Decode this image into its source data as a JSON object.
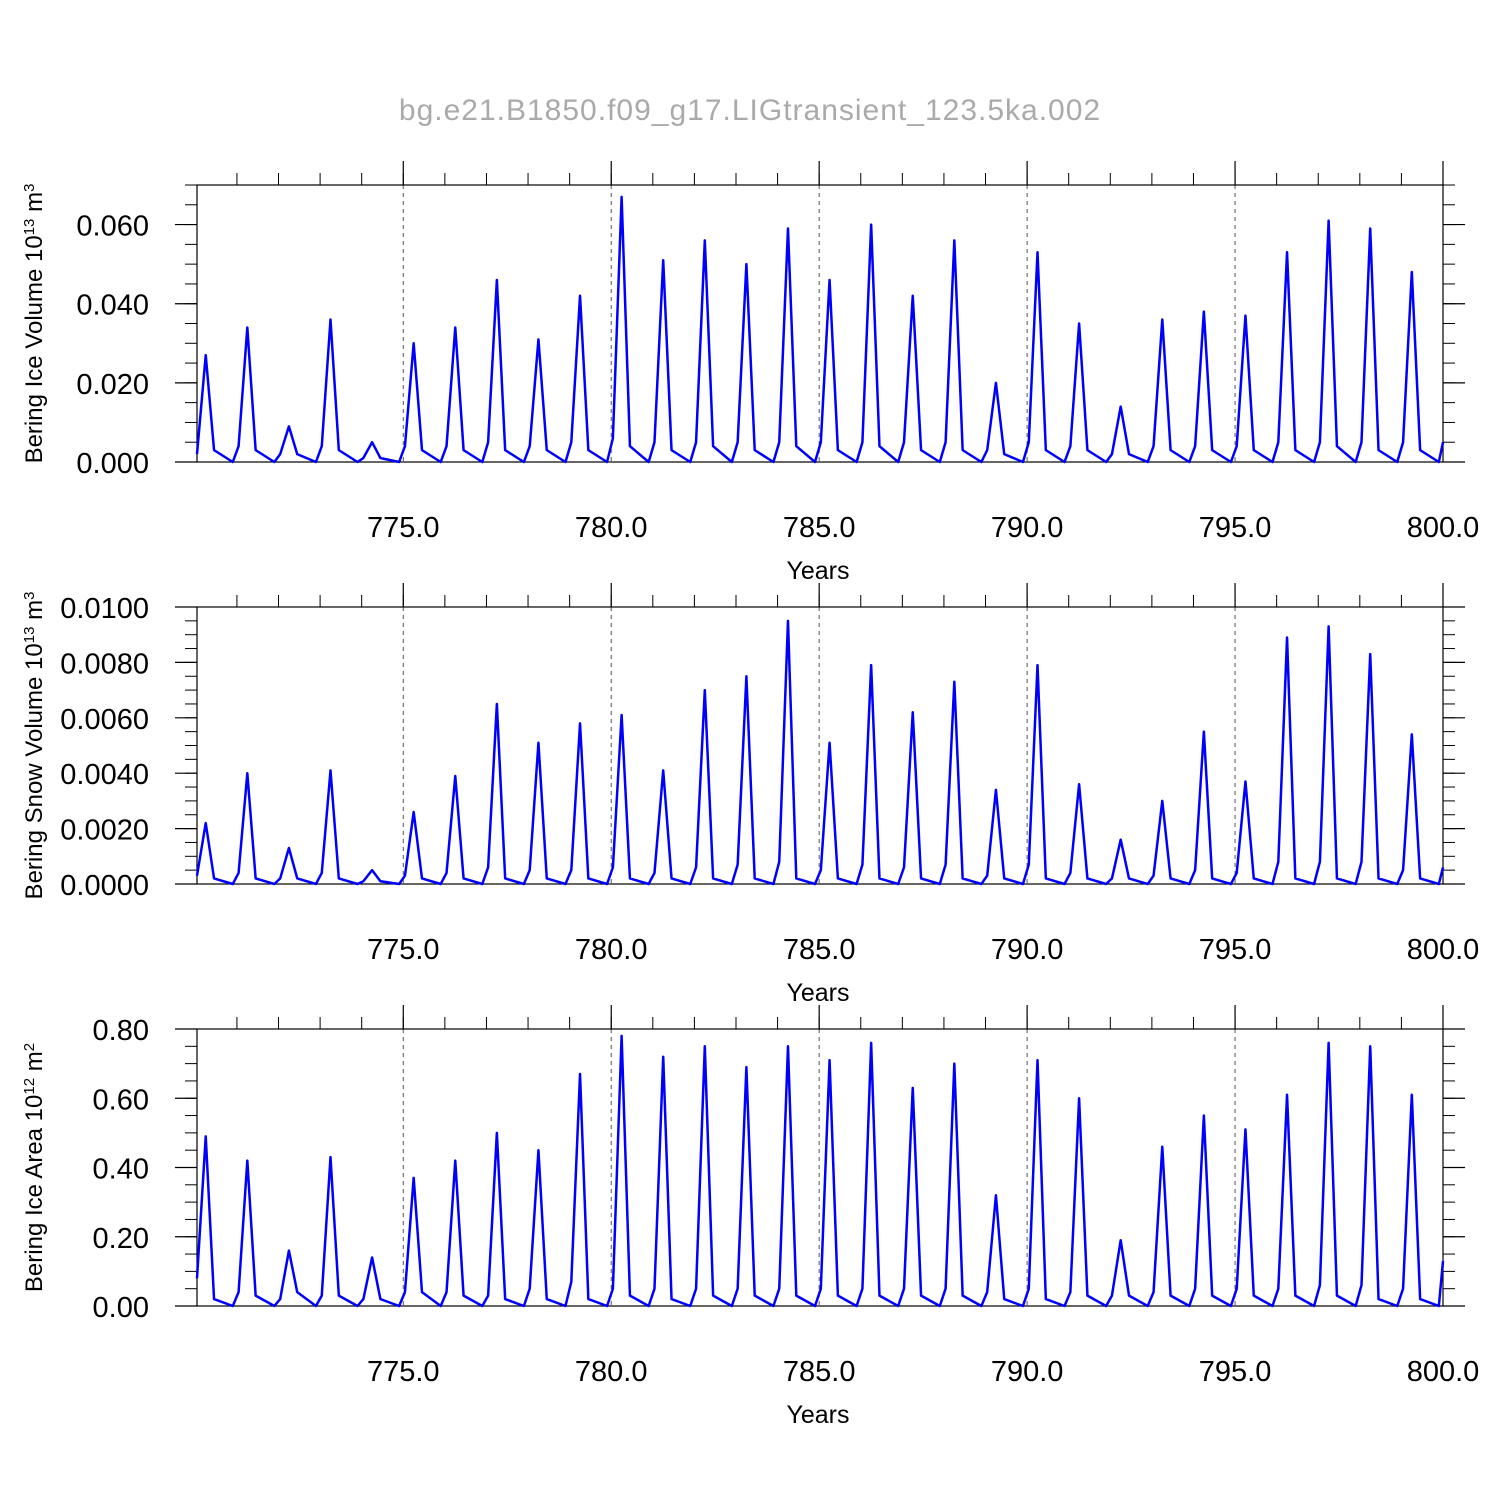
{
  "title": "bg.e21.B1850.f09_g17.LIGtransient_123.5ka.002",
  "chart_data": [
    {
      "type": "line",
      "color": "#0000ff",
      "grid": "x-dashed",
      "ylabel": [
        "Bering Ice Volume 10",
        "13",
        " m",
        "3"
      ],
      "xlabel": "Years",
      "xlim": [
        770.04,
        800.0
      ],
      "ylim": [
        0,
        0.07
      ],
      "xticks": [
        {
          "value": 775,
          "label": "775.0"
        },
        {
          "value": 780,
          "label": "780.0"
        },
        {
          "value": 785,
          "label": "785.0"
        },
        {
          "value": 790,
          "label": "790.0"
        },
        {
          "value": 795,
          "label": "795.0"
        },
        {
          "value": 800,
          "label": "800.0"
        }
      ],
      "yticks": [
        {
          "value": 0,
          "label": "0.000"
        },
        {
          "value": 0.02,
          "label": "0.020"
        },
        {
          "value": 0.04,
          "label": "0.040"
        },
        {
          "value": 0.06,
          "label": "0.060"
        }
      ],
      "x": [
        770.04,
        770.25,
        770.45,
        770.9,
        771.04,
        771.25,
        771.45,
        771.9,
        772.04,
        772.25,
        772.45,
        772.9,
        773.04,
        773.25,
        773.45,
        773.9,
        774.04,
        774.25,
        774.45,
        774.9,
        775.04,
        775.25,
        775.45,
        775.9,
        776.04,
        776.25,
        776.45,
        776.9,
        777.04,
        777.25,
        777.45,
        777.9,
        778.04,
        778.25,
        778.45,
        778.9,
        779.04,
        779.25,
        779.45,
        779.9,
        780.04,
        780.25,
        780.45,
        780.9,
        781.04,
        781.25,
        781.45,
        781.9,
        782.04,
        782.25,
        782.45,
        782.9,
        783.04,
        783.25,
        783.45,
        783.9,
        784.04,
        784.25,
        784.45,
        784.9,
        785.04,
        785.25,
        785.45,
        785.9,
        786.04,
        786.25,
        786.45,
        786.9,
        787.04,
        787.25,
        787.45,
        787.9,
        788.04,
        788.25,
        788.45,
        788.9,
        789.04,
        789.25,
        789.45,
        789.9,
        790.04,
        790.25,
        790.45,
        790.9,
        791.04,
        791.25,
        791.45,
        791.9,
        792.04,
        792.25,
        792.45,
        792.9,
        793.04,
        793.25,
        793.45,
        793.9,
        794.04,
        794.25,
        794.45,
        794.9,
        795.04,
        795.25,
        795.45,
        795.9,
        796.04,
        796.25,
        796.45,
        796.9,
        797.04,
        797.25,
        797.45,
        797.9,
        798.04,
        798.25,
        798.45,
        798.9,
        799.04,
        799.25,
        799.45,
        799.9,
        800.0
      ],
      "values": [
        0.002,
        0.027,
        0.003,
        0,
        0.004,
        0.034,
        0.003,
        0,
        0.002,
        0.009,
        0.002,
        0,
        0.004,
        0.036,
        0.003,
        0,
        0.001,
        0.005,
        0.001,
        0,
        0.004,
        0.03,
        0.003,
        0,
        0.004,
        0.034,
        0.003,
        0,
        0.005,
        0.046,
        0.003,
        0,
        0.004,
        0.031,
        0.003,
        0,
        0.005,
        0.042,
        0.003,
        0,
        0.006,
        0.067,
        0.004,
        0,
        0.005,
        0.051,
        0.003,
        0,
        0.005,
        0.056,
        0.004,
        0,
        0.005,
        0.05,
        0.003,
        0,
        0.005,
        0.059,
        0.004,
        0,
        0.005,
        0.046,
        0.003,
        0,
        0.005,
        0.06,
        0.004,
        0,
        0.005,
        0.042,
        0.003,
        0,
        0.005,
        0.056,
        0.003,
        0,
        0.003,
        0.02,
        0.002,
        0,
        0.005,
        0.053,
        0.003,
        0,
        0.004,
        0.035,
        0.003,
        0,
        0.002,
        0.014,
        0.002,
        0,
        0.004,
        0.036,
        0.003,
        0,
        0.004,
        0.038,
        0.003,
        0,
        0.004,
        0.037,
        0.003,
        0,
        0.005,
        0.053,
        0.003,
        0,
        0.005,
        0.061,
        0.004,
        0,
        0.005,
        0.059,
        0.003,
        0,
        0.005,
        0.048,
        0.003,
        0,
        0.005
      ]
    },
    {
      "type": "line",
      "color": "#0000ff",
      "grid": "x-dashed",
      "ylabel": [
        "Bering Snow Volume 10",
        "13",
        " m",
        "3"
      ],
      "xlabel": "Years",
      "xlim": [
        770.04,
        800.0
      ],
      "ylim": [
        0,
        0.01
      ],
      "xticks": [
        {
          "value": 775,
          "label": "775.0"
        },
        {
          "value": 780,
          "label": "780.0"
        },
        {
          "value": 785,
          "label": "785.0"
        },
        {
          "value": 790,
          "label": "790.0"
        },
        {
          "value": 795,
          "label": "795.0"
        },
        {
          "value": 800,
          "label": "800.0"
        }
      ],
      "yticks": [
        {
          "value": 0,
          "label": "0.0000"
        },
        {
          "value": 0.002,
          "label": "0.0020"
        },
        {
          "value": 0.004,
          "label": "0.0040"
        },
        {
          "value": 0.006,
          "label": "0.0060"
        },
        {
          "value": 0.008,
          "label": "0.0080"
        },
        {
          "value": 0.01,
          "label": "0.0100"
        }
      ],
      "x": [
        770.04,
        770.25,
        770.45,
        770.9,
        771.04,
        771.25,
        771.45,
        771.9,
        772.04,
        772.25,
        772.45,
        772.9,
        773.04,
        773.25,
        773.45,
        773.9,
        774.04,
        774.25,
        774.45,
        774.9,
        775.04,
        775.25,
        775.45,
        775.9,
        776.04,
        776.25,
        776.45,
        776.9,
        777.04,
        777.25,
        777.45,
        777.9,
        778.04,
        778.25,
        778.45,
        778.9,
        779.04,
        779.25,
        779.45,
        779.9,
        780.04,
        780.25,
        780.45,
        780.9,
        781.04,
        781.25,
        781.45,
        781.9,
        782.04,
        782.25,
        782.45,
        782.9,
        783.04,
        783.25,
        783.45,
        783.9,
        784.04,
        784.25,
        784.45,
        784.9,
        785.04,
        785.25,
        785.45,
        785.9,
        786.04,
        786.25,
        786.45,
        786.9,
        787.04,
        787.25,
        787.45,
        787.9,
        788.04,
        788.25,
        788.45,
        788.9,
        789.04,
        789.25,
        789.45,
        789.9,
        790.04,
        790.25,
        790.45,
        790.9,
        791.04,
        791.25,
        791.45,
        791.9,
        792.04,
        792.25,
        792.45,
        792.9,
        793.04,
        793.25,
        793.45,
        793.9,
        794.04,
        794.25,
        794.45,
        794.9,
        795.04,
        795.25,
        795.45,
        795.9,
        796.04,
        796.25,
        796.45,
        796.9,
        797.04,
        797.25,
        797.45,
        797.9,
        798.04,
        798.25,
        798.45,
        798.9,
        799.04,
        799.25,
        799.45,
        799.9,
        800.0
      ],
      "values": [
        0.0003,
        0.0022,
        0.0002,
        0,
        0.0004,
        0.004,
        0.0002,
        0,
        0.0002,
        0.0013,
        0.0002,
        0,
        0.0004,
        0.0041,
        0.0002,
        0,
        0.0001,
        0.0005,
        0.0001,
        0,
        0.0003,
        0.0026,
        0.0002,
        0,
        0.0004,
        0.0039,
        0.0002,
        0,
        0.0006,
        0.0065,
        0.0002,
        0,
        0.0005,
        0.0051,
        0.0002,
        0,
        0.0005,
        0.0058,
        0.0002,
        0,
        0.0006,
        0.0061,
        0.0002,
        0,
        0.0004,
        0.0041,
        0.0002,
        0,
        0.0006,
        0.007,
        0.0002,
        0,
        0.0007,
        0.0075,
        0.0002,
        0,
        0.0008,
        0.0095,
        0.0002,
        0,
        0.0005,
        0.0051,
        0.0002,
        0,
        0.0007,
        0.0079,
        0.0002,
        0,
        0.0006,
        0.0062,
        0.0002,
        0,
        0.0007,
        0.0073,
        0.0002,
        0,
        0.0003,
        0.0034,
        0.0002,
        0,
        0.0007,
        0.0079,
        0.0002,
        0,
        0.0004,
        0.0036,
        0.0002,
        0,
        0.0002,
        0.0016,
        0.0002,
        0,
        0.0003,
        0.003,
        0.0002,
        0,
        0.0005,
        0.0055,
        0.0002,
        0,
        0.0004,
        0.0037,
        0.0002,
        0,
        0.0008,
        0.0089,
        0.0002,
        0,
        0.0008,
        0.0093,
        0.0002,
        0,
        0.0008,
        0.0083,
        0.0002,
        0,
        0.0005,
        0.0054,
        0.0002,
        0,
        0.0006
      ]
    },
    {
      "type": "line",
      "color": "#0000ff",
      "grid": "x-dashed",
      "ylabel": [
        "Bering Ice Area 10",
        "12",
        " m",
        "2"
      ],
      "xlabel": "Years",
      "xlim": [
        770.04,
        800.0
      ],
      "ylim": [
        0,
        0.8
      ],
      "xticks": [
        {
          "value": 775,
          "label": "775.0"
        },
        {
          "value": 780,
          "label": "780.0"
        },
        {
          "value": 785,
          "label": "785.0"
        },
        {
          "value": 790,
          "label": "790.0"
        },
        {
          "value": 795,
          "label": "795.0"
        },
        {
          "value": 800,
          "label": "800.0"
        }
      ],
      "yticks": [
        {
          "value": 0,
          "label": "0.00"
        },
        {
          "value": 0.2,
          "label": "0.20"
        },
        {
          "value": 0.4,
          "label": "0.40"
        },
        {
          "value": 0.6,
          "label": "0.60"
        },
        {
          "value": 0.8,
          "label": "0.80"
        }
      ],
      "x": [
        770.04,
        770.25,
        770.45,
        770.9,
        771.04,
        771.25,
        771.45,
        771.9,
        772.04,
        772.25,
        772.45,
        772.9,
        773.04,
        773.25,
        773.45,
        773.9,
        774.04,
        774.25,
        774.45,
        774.9,
        775.04,
        775.25,
        775.45,
        775.9,
        776.04,
        776.25,
        776.45,
        776.9,
        777.04,
        777.25,
        777.45,
        777.9,
        778.04,
        778.25,
        778.45,
        778.9,
        779.04,
        779.25,
        779.45,
        779.9,
        780.04,
        780.25,
        780.45,
        780.9,
        781.04,
        781.25,
        781.45,
        781.9,
        782.04,
        782.25,
        782.45,
        782.9,
        783.04,
        783.25,
        783.45,
        783.9,
        784.04,
        784.25,
        784.45,
        784.9,
        785.04,
        785.25,
        785.45,
        785.9,
        786.04,
        786.25,
        786.45,
        786.9,
        787.04,
        787.25,
        787.45,
        787.9,
        788.04,
        788.25,
        788.45,
        788.9,
        789.04,
        789.25,
        789.45,
        789.9,
        790.04,
        790.25,
        790.45,
        790.9,
        791.04,
        791.25,
        791.45,
        791.9,
        792.04,
        792.25,
        792.45,
        792.9,
        793.04,
        793.25,
        793.45,
        793.9,
        794.04,
        794.25,
        794.45,
        794.9,
        795.04,
        795.25,
        795.45,
        795.9,
        796.04,
        796.25,
        796.45,
        796.9,
        797.04,
        797.25,
        797.45,
        797.9,
        798.04,
        798.25,
        798.45,
        798.9,
        799.04,
        799.25,
        799.45,
        799.9,
        800.0
      ],
      "values": [
        0.08,
        0.49,
        0.02,
        0,
        0.04,
        0.42,
        0.03,
        0,
        0.02,
        0.16,
        0.04,
        0,
        0.03,
        0.43,
        0.03,
        0,
        0.02,
        0.14,
        0.02,
        0,
        0.04,
        0.37,
        0.04,
        0,
        0.04,
        0.42,
        0.03,
        0,
        0.03,
        0.5,
        0.02,
        0,
        0.05,
        0.45,
        0.02,
        0,
        0.07,
        0.67,
        0.02,
        0,
        0.05,
        0.78,
        0.03,
        0,
        0.05,
        0.72,
        0.02,
        0,
        0.05,
        0.75,
        0.03,
        0,
        0.05,
        0.69,
        0.03,
        0,
        0.05,
        0.75,
        0.03,
        0,
        0.05,
        0.71,
        0.03,
        0,
        0.05,
        0.76,
        0.03,
        0,
        0.05,
        0.63,
        0.03,
        0,
        0.05,
        0.7,
        0.03,
        0,
        0.04,
        0.32,
        0.02,
        0,
        0.05,
        0.71,
        0.02,
        0,
        0.04,
        0.6,
        0.03,
        0,
        0.03,
        0.19,
        0.03,
        0,
        0.04,
        0.46,
        0.03,
        0,
        0.05,
        0.55,
        0.03,
        0,
        0.05,
        0.51,
        0.03,
        0,
        0.05,
        0.61,
        0.03,
        0,
        0.06,
        0.76,
        0.03,
        0,
        0.06,
        0.75,
        0.02,
        0,
        0.05,
        0.61,
        0.02,
        0,
        0.13
      ]
    }
  ]
}
